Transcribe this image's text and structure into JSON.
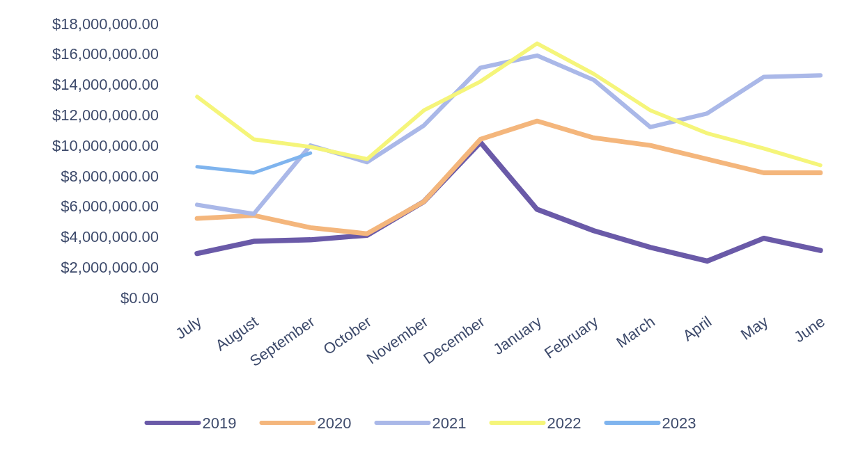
{
  "chart_data": {
    "type": "line",
    "categories": [
      "July",
      "August",
      "September",
      "October",
      "November",
      "December",
      "January",
      "February",
      "March",
      "April",
      "May",
      "June"
    ],
    "ylim": [
      0,
      18000000
    ],
    "yticks": [
      {
        "value": 0,
        "label": "$0.00"
      },
      {
        "value": 2000000,
        "label": "$2,000,000.00"
      },
      {
        "value": 4000000,
        "label": "$4,000,000.00"
      },
      {
        "value": 6000000,
        "label": "$6,000,000.00"
      },
      {
        "value": 8000000,
        "label": "$8,000,000.00"
      },
      {
        "value": 10000000,
        "label": "$10,000,000.00"
      },
      {
        "value": 12000000,
        "label": "$12,000,000.00"
      },
      {
        "value": 14000000,
        "label": "$14,000,000.00"
      },
      {
        "value": 16000000,
        "label": "$16,000,000.00"
      },
      {
        "value": 18000000,
        "label": "$18,000,000.00"
      }
    ],
    "legend": "bottom",
    "marker": "none",
    "line_style": "solid",
    "series": [
      {
        "name": "2019",
        "color": "#6a5aa8",
        "values": [
          2900000,
          3700000,
          3800000,
          4100000,
          6300000,
          10200000,
          5800000,
          4400000,
          3300000,
          2400000,
          3900000,
          3100000
        ]
      },
      {
        "name": "2020",
        "color": "#f4b67c",
        "values": [
          5200000,
          5400000,
          4600000,
          4200000,
          6300000,
          10400000,
          11600000,
          10500000,
          10000000,
          9100000,
          8200000,
          8200000
        ]
      },
      {
        "name": "2021",
        "color": "#aab8e8",
        "values": [
          6100000,
          5500000,
          10000000,
          8900000,
          11300000,
          15100000,
          15900000,
          14300000,
          11200000,
          12100000,
          14500000,
          14600000
        ]
      },
      {
        "name": "2022",
        "color": "#f5f57a",
        "values": [
          13200000,
          10400000,
          9900000,
          9100000,
          12300000,
          14200000,
          16700000,
          14700000,
          12300000,
          10800000,
          9800000,
          8700000
        ]
      },
      {
        "name": "2023",
        "color": "#7fb4ee",
        "values": [
          8600000,
          8200000,
          9500000,
          null,
          null,
          null,
          null,
          null,
          null,
          null,
          null,
          null
        ]
      }
    ]
  }
}
